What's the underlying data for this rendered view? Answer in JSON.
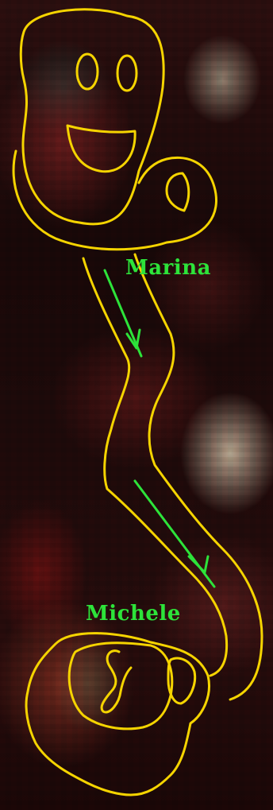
{
  "labels": {
    "marina": "Marina",
    "michele": "Michele"
  },
  "colors": {
    "outline": "#f5d400",
    "arrow": "#2de33a",
    "label": "#2de33a"
  }
}
